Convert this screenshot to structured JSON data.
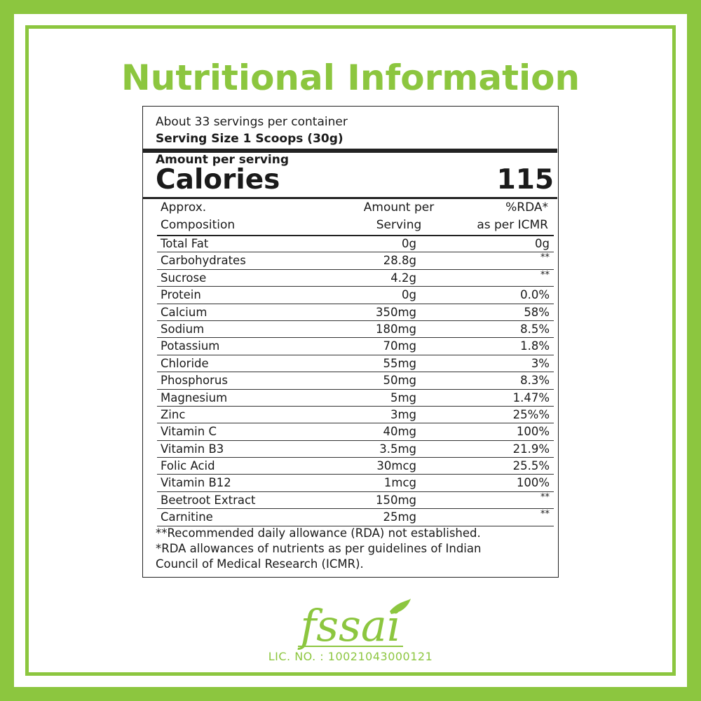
{
  "title": "Nutritional Information",
  "servings_per_container": "About 33 servings per container",
  "serving_size": "Serving Size  1 Scoops (30g)",
  "amount_per_serving": "Amount per serving",
  "calories_label": "Calories",
  "calories_value": "115",
  "columns": {
    "composition_line1": "Approx.",
    "composition_line2": "Composition",
    "amount_line1": "Amount per",
    "amount_line2": "Serving",
    "rda_line1": "%RDA*",
    "rda_line2": "as per ICMR"
  },
  "rows": [
    {
      "name": "Total Fat",
      "amount": "0g",
      "rda": "0g"
    },
    {
      "name": "Carbohydrates",
      "amount": "28.8g",
      "rda": "**"
    },
    {
      "name": "Sucrose",
      "amount": "4.2g",
      "rda": "**"
    },
    {
      "name": "Protein",
      "amount": "0g",
      "rda": "0.0%"
    },
    {
      "name": "Calcium",
      "amount": "350mg",
      "rda": "58%"
    },
    {
      "name": "Sodium",
      "amount": "180mg",
      "rda": "8.5%"
    },
    {
      "name": "Potassium",
      "amount": "70mg",
      "rda": "1.8%"
    },
    {
      "name": "Chloride",
      "amount": "55mg",
      "rda": "3%"
    },
    {
      "name": "Phosphorus",
      "amount": "50mg",
      "rda": "8.3%"
    },
    {
      "name": "Magnesium",
      "amount": "5mg",
      "rda": "1.47%"
    },
    {
      "name": "Zinc",
      "amount": "3mg",
      "rda": "25%%"
    },
    {
      "name": "Vitamin C",
      "amount": "40mg",
      "rda": "100%"
    },
    {
      "name": "Vitamin B3",
      "amount": "3.5mg",
      "rda": "21.9%"
    },
    {
      "name": "Folic Acid",
      "amount": "30mcg",
      "rda": "25.5%"
    },
    {
      "name": "Vitamin B12",
      "amount": "1mcg",
      "rda": "100%"
    },
    {
      "name": "Beetroot Extract",
      "amount": "150mg",
      "rda": "**"
    },
    {
      "name": "Carnitine",
      "amount": "25mg",
      "rda": "**"
    }
  ],
  "notes": {
    "line1": "**Recommended daily allowance (RDA) not established.",
    "line2": "*RDA allowances of nutrients as per guidelines of Indian",
    "line3": "Council of Medical Research (ICMR)."
  },
  "logo_text": "fssai",
  "license": "LIC. NO. : 10021043000121",
  "colors": {
    "accent_green": "#8cc63f",
    "text": "#1a1a1a",
    "rule": "#222222"
  }
}
